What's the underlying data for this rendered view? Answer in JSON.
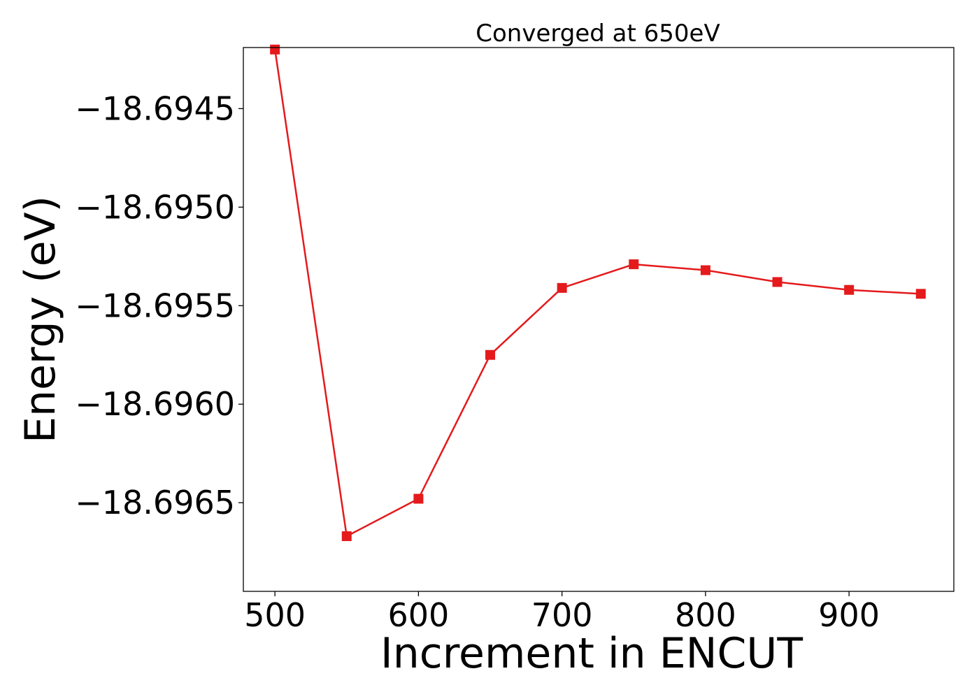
{
  "chart_data": {
    "type": "line",
    "title": "Converged at 650eV",
    "xlabel": "Increment in ENCUT",
    "ylabel": "Energy (eV)",
    "x": [
      500,
      550,
      600,
      650,
      700,
      750,
      800,
      850,
      900,
      950
    ],
    "series": [
      {
        "values": [
          -18.6942,
          -18.69667,
          -18.69648,
          -18.69575,
          -18.69541,
          -18.69529,
          -18.69532,
          -18.69538,
          -18.69542,
          -18.69544
        ],
        "color": "#e41a1c",
        "marker": "square"
      }
    ],
    "xlim": [
      478,
      973
    ],
    "ylim": [
      -18.69695,
      -18.69419
    ],
    "xticks": [
      500,
      600,
      700,
      800,
      900
    ],
    "xtick_labels": [
      "500",
      "600",
      "700",
      "800",
      "900"
    ],
    "yticks": [
      -18.6945,
      -18.695,
      -18.6955,
      -18.696,
      -18.6965
    ],
    "ytick_labels": [
      "−18.6945",
      "−18.6950",
      "−18.6955",
      "−18.6960",
      "−18.6965"
    ],
    "grid": false,
    "legend": "none"
  }
}
